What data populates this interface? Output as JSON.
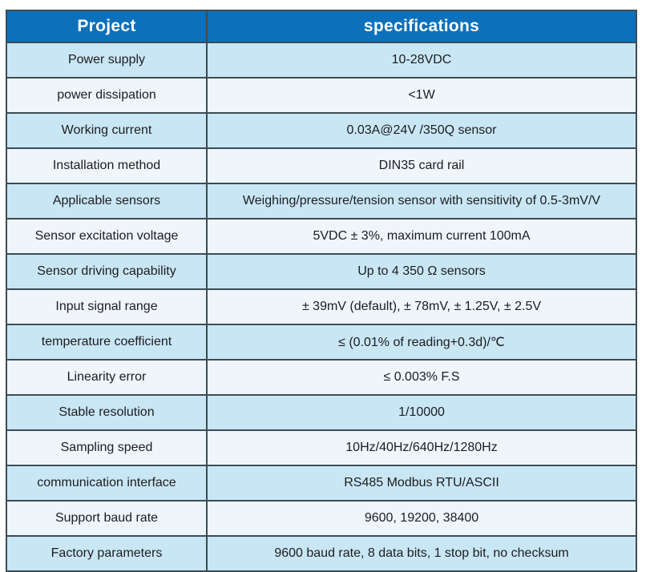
{
  "table": {
    "headers": {
      "project": "Project",
      "specifications": "specifications"
    },
    "rows": [
      {
        "project": "Power supply",
        "spec": "10-28VDC"
      },
      {
        "project": "power dissipation",
        "spec": "<1W"
      },
      {
        "project": "Working current",
        "spec": "0.03A@24V /350Q sensor"
      },
      {
        "project": "Installation method",
        "spec": "DIN35 card rail"
      },
      {
        "project": "Applicable sensors",
        "spec": "Weighing/pressure/tension sensor with sensitivity of 0.5-3mV/V"
      },
      {
        "project": "Sensor excitation voltage",
        "spec": "5VDC ± 3%, maximum current 100mA"
      },
      {
        "project": "Sensor driving capability",
        "spec": "Up to 4 350 Ω sensors"
      },
      {
        "project": "Input signal range",
        "spec": "± 39mV (default), ± 78mV, ± 1.25V, ± 2.5V"
      },
      {
        "project": "temperature coefficient",
        "spec": "≤ (0.01% of reading+0.3d)/℃"
      },
      {
        "project": "Linearity error",
        "spec": "≤ 0.003% F.S"
      },
      {
        "project": "Stable resolution",
        "spec": "1/10000"
      },
      {
        "project": "Sampling speed",
        "spec": "10Hz/40Hz/640Hz/1280Hz"
      },
      {
        "project": "communication interface",
        "spec": "RS485 Modbus RTU/ASCII"
      },
      {
        "project": "Support baud rate",
        "spec": "9600, 19200, 38400"
      },
      {
        "project": "Factory parameters",
        "spec": "9600 baud rate, 8 data bits, 1 stop bit, no checksum"
      }
    ]
  },
  "colors": {
    "header_bg": "#0d70ba",
    "header_text": "#ffffff",
    "row_light_blue": "#c9e6f5",
    "row_pale": "#eef5fb",
    "border": "#3d4c54",
    "body_text": "#1d1d1f"
  }
}
